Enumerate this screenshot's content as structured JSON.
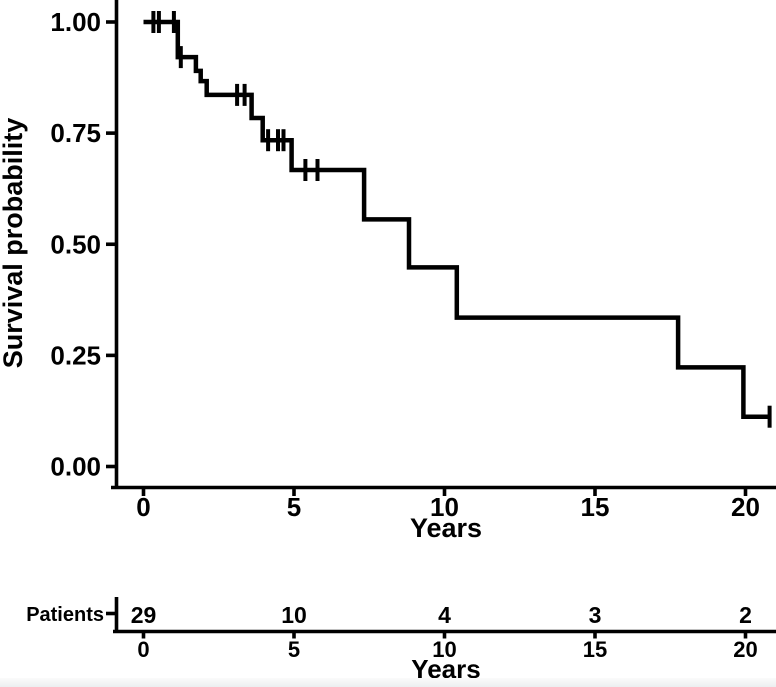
{
  "figure": {
    "background": "#ffffff",
    "line_color": "#000000"
  },
  "chart_data": {
    "type": "line",
    "subtype": "kaplan-meier-step-curve",
    "xlabel": "Years",
    "ylabel": "Survival probability",
    "grid": false,
    "xlim": [
      -0.95,
      21.0
    ],
    "ylim": [
      -0.05,
      1.05
    ],
    "x_ticks": [
      {
        "v": 0,
        "label": "0"
      },
      {
        "v": 5,
        "label": "5"
      },
      {
        "v": 10,
        "label": "10"
      },
      {
        "v": 15,
        "label": "15"
      },
      {
        "v": 20,
        "label": "20"
      }
    ],
    "y_ticks": [
      {
        "v": 1.0,
        "label": "1.00"
      },
      {
        "v": 0.75,
        "label": "0.75"
      },
      {
        "v": 0.5,
        "label": "0.50"
      },
      {
        "v": 0.25,
        "label": "0.25"
      },
      {
        "v": 0.0,
        "label": "0.00"
      }
    ],
    "series": [
      {
        "color": "#000000",
        "steps": [
          {
            "t": 0.0,
            "s": 1.0
          },
          {
            "t": 1.14,
            "s": 0.921
          },
          {
            "t": 1.74,
            "s": 0.89
          },
          {
            "t": 1.9,
            "s": 0.867
          },
          {
            "t": 2.1,
            "s": 0.836
          },
          {
            "t": 3.59,
            "s": 0.784
          },
          {
            "t": 3.96,
            "s": 0.734
          },
          {
            "t": 4.92,
            "s": 0.667
          },
          {
            "t": 7.33,
            "s": 0.556
          },
          {
            "t": 8.82,
            "s": 0.448
          },
          {
            "t": 10.41,
            "s": 0.335
          },
          {
            "t": 17.76,
            "s": 0.223
          },
          {
            "t": 19.93,
            "s": 0.112
          }
        ],
        "end_t": 20.8,
        "censors": [
          {
            "t": 0.33,
            "s": 1.0
          },
          {
            "t": 0.51,
            "s": 1.0
          },
          {
            "t": 1.01,
            "s": 1.0
          },
          {
            "t": 1.24,
            "s": 0.921
          },
          {
            "t": 3.11,
            "s": 0.836
          },
          {
            "t": 3.36,
            "s": 0.836
          },
          {
            "t": 4.14,
            "s": 0.734
          },
          {
            "t": 4.47,
            "s": 0.734
          },
          {
            "t": 4.65,
            "s": 0.734
          },
          {
            "t": 5.38,
            "s": 0.667
          },
          {
            "t": 5.78,
            "s": 0.667
          },
          {
            "t": 20.8,
            "s": 0.112
          }
        ]
      }
    ],
    "risk_table": {
      "row_label": "Patients",
      "xlabel": "Years",
      "times": [
        0,
        5,
        10,
        15,
        20
      ],
      "time_labels": [
        "0",
        "5",
        "10",
        "15",
        "20"
      ],
      "counts": [
        29,
        10,
        4,
        3,
        2
      ]
    }
  }
}
